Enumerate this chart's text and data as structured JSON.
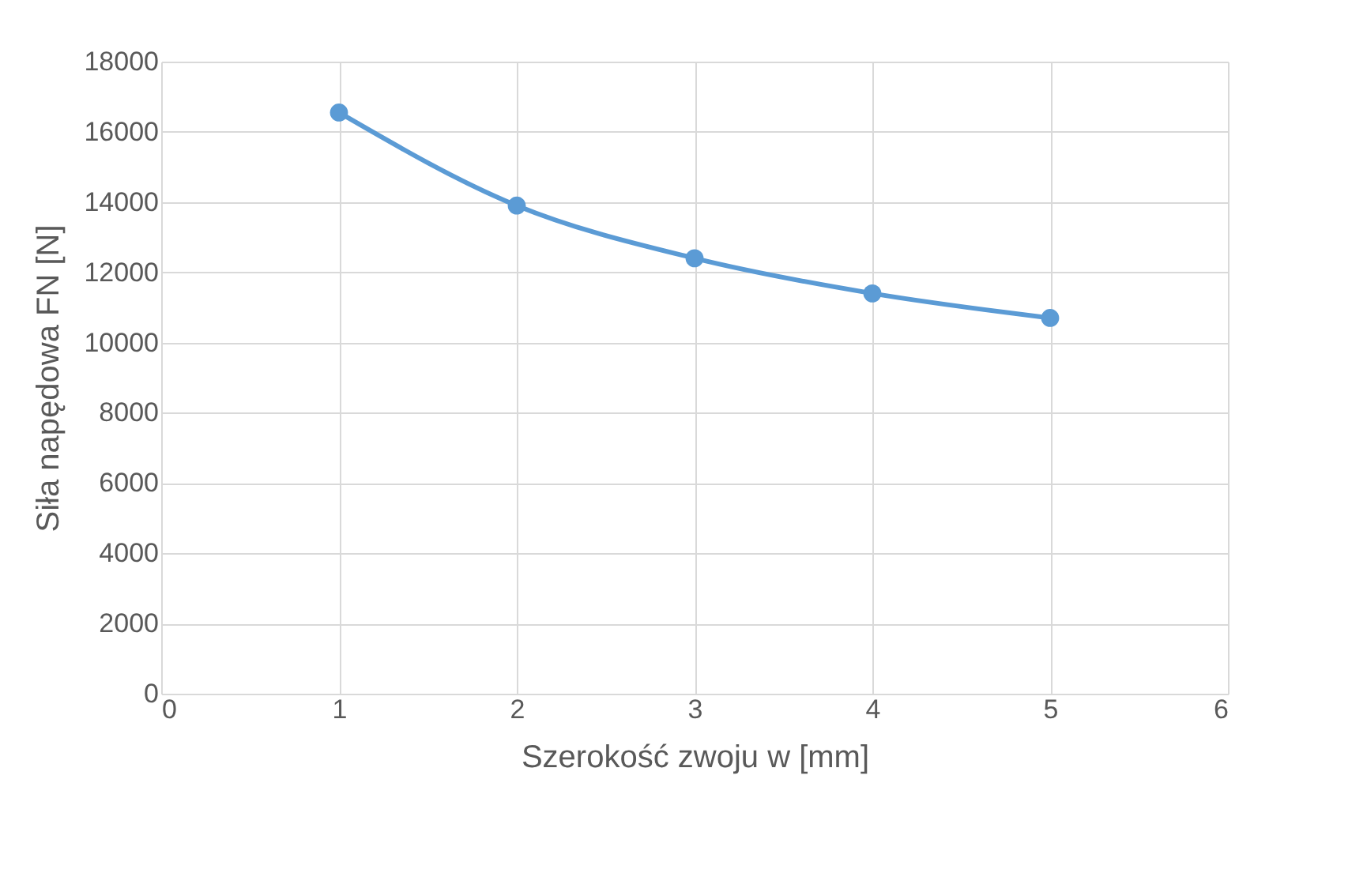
{
  "chart_data": {
    "type": "line",
    "xlabel": "Szerokość zwoju w [mm]",
    "ylabel": "Siła napędowa FN [N]",
    "x": [
      1,
      2,
      3,
      4,
      5
    ],
    "series": [
      {
        "color": "#5b9bd5",
        "values": [
          16550,
          13900,
          12400,
          11400,
          10700
        ]
      }
    ],
    "xlim": [
      0,
      6
    ],
    "xticks": [
      0,
      1,
      2,
      3,
      4,
      5,
      6
    ],
    "ylim": [
      0,
      18000
    ],
    "yticks": [
      0,
      2000,
      4000,
      6000,
      8000,
      10000,
      12000,
      14000,
      16000,
      18000
    ],
    "grid": true,
    "marker": "circle",
    "line_style": "solid"
  }
}
